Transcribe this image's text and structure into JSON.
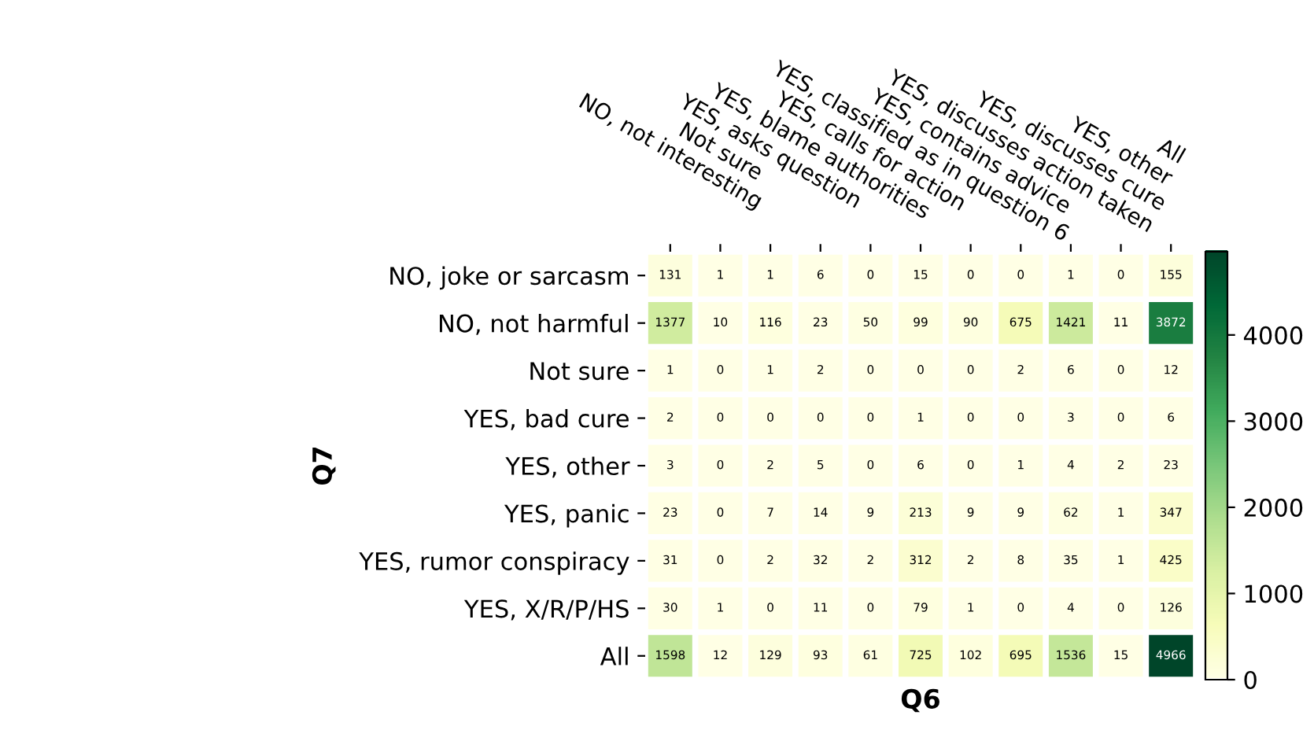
{
  "chart_data": {
    "type": "heatmap",
    "categories": [
      "NO, not interesting",
      "Not sure",
      "YES, asks question",
      "YES, blame authorities",
      "YES, calls for action",
      "YES, classified as in question 6",
      "YES, contains advice",
      "YES, discusses action taken",
      "YES, discusses cure",
      "YES, other",
      "All"
    ],
    "y_categories": [
      "NO, joke or sarcasm",
      "NO, not harmful",
      "Not sure",
      "YES, bad cure",
      "YES, other",
      "YES, panic",
      "YES, rumor conspiracy",
      "YES, X/R/P/HS",
      "All"
    ],
    "cells": [
      [
        131,
        1,
        1,
        6,
        0,
        15,
        0,
        0,
        1,
        0,
        155
      ],
      [
        1377,
        10,
        116,
        23,
        50,
        99,
        90,
        675,
        1421,
        11,
        3872
      ],
      [
        1,
        0,
        1,
        2,
        0,
        0,
        0,
        2,
        6,
        0,
        12
      ],
      [
        2,
        0,
        0,
        0,
        0,
        1,
        0,
        0,
        3,
        0,
        6
      ],
      [
        3,
        0,
        2,
        5,
        0,
        6,
        0,
        1,
        4,
        2,
        23
      ],
      [
        23,
        0,
        7,
        14,
        9,
        213,
        9,
        9,
        62,
        1,
        347
      ],
      [
        31,
        0,
        2,
        32,
        2,
        312,
        2,
        8,
        35,
        1,
        425
      ],
      [
        30,
        1,
        0,
        11,
        0,
        79,
        1,
        0,
        4,
        0,
        126
      ],
      [
        1598,
        12,
        129,
        93,
        61,
        725,
        102,
        695,
        1536,
        15,
        4966
      ]
    ],
    "clim": [
      0,
      4966
    ],
    "cticks": [
      0,
      1000,
      2000,
      3000,
      4000
    ],
    "xlabel": "Q6",
    "ylabel": "Q7",
    "data_labels": true
  }
}
